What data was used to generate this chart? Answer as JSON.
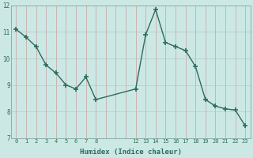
{
  "x": [
    0,
    1,
    2,
    3,
    4,
    5,
    6,
    7,
    8,
    12,
    13,
    14,
    15,
    16,
    17,
    18,
    19,
    20,
    21,
    22,
    23
  ],
  "y": [
    11.1,
    10.8,
    10.45,
    9.75,
    9.45,
    9.0,
    8.85,
    9.3,
    8.45,
    8.85,
    10.9,
    11.85,
    10.6,
    10.45,
    10.3,
    9.7,
    8.45,
    8.2,
    8.1,
    8.05,
    7.45
  ],
  "line_color": "#2d6b5e",
  "marker_color": "#2d6b5e",
  "bg_color": "#cce8e4",
  "grid_color_v": "#c8a0a0",
  "grid_color_h": "#b8c8c4",
  "xlabel": "Humidex (Indice chaleur)",
  "ylim": [
    7,
    12
  ],
  "yticks": [
    7,
    8,
    9,
    10,
    11,
    12
  ],
  "xticks": [
    0,
    1,
    2,
    3,
    4,
    5,
    6,
    7,
    8,
    12,
    13,
    14,
    15,
    16,
    17,
    18,
    19,
    20,
    21,
    22,
    23
  ],
  "xlim": [
    -0.5,
    23.5
  ],
  "font_color": "#2d6b5e"
}
